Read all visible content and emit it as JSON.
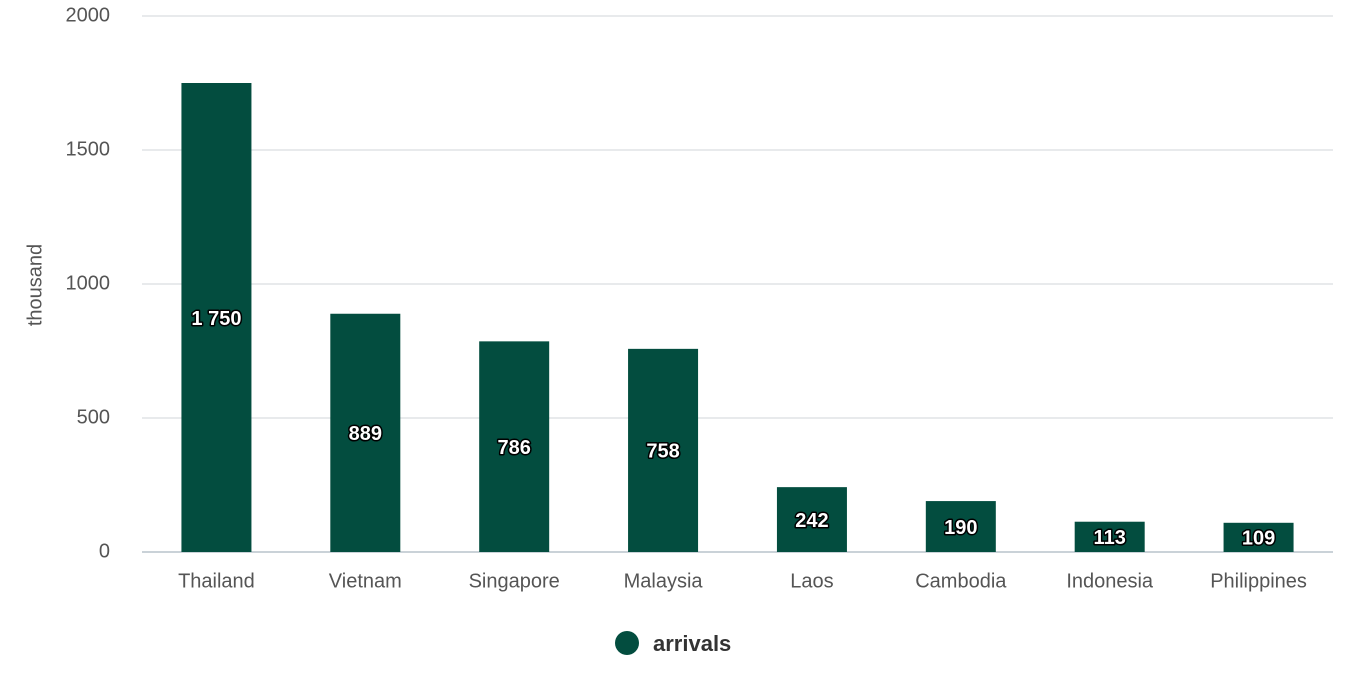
{
  "chart_data": {
    "type": "bar",
    "y_label": "thousand",
    "categories": [
      "Thailand",
      "Vietnam",
      "Singapore",
      "Malaysia",
      "Laos",
      "Cambodia",
      "Indonesia",
      "Philippines"
    ],
    "series": [
      {
        "name": "arrivals",
        "color": "#034d3f",
        "values": [
          1750,
          889,
          786,
          758,
          242,
          190,
          113,
          109
        ],
        "value_labels": [
          "1 750",
          "889",
          "786",
          "758",
          "242",
          "190",
          "113",
          "109"
        ]
      }
    ],
    "ylim": [
      0,
      2000
    ],
    "yticks": [
      0,
      500,
      1000,
      1500,
      2000
    ],
    "grid": true,
    "legend": "bottom"
  }
}
